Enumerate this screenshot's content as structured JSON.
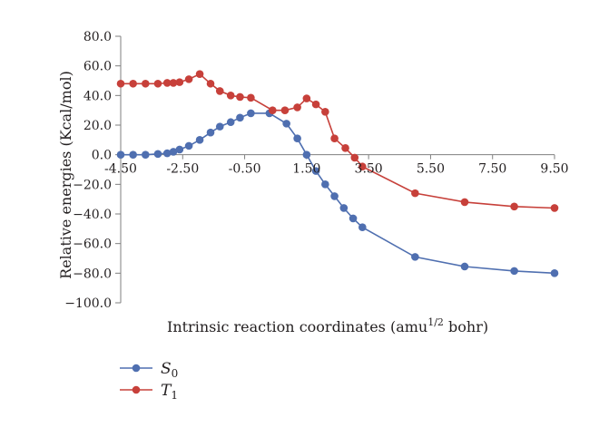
{
  "chart_data": {
    "type": "line",
    "ylabel": "Relative energies (Kcal/mol)",
    "xlabel": {
      "prefix": "Intrinsic reaction coordinates (amu",
      "sup": "1/2",
      "suffix": " bohr)"
    },
    "xlim": [
      -4.5,
      9.5
    ],
    "ylim": [
      -100,
      80
    ],
    "x_ticks": [
      {
        "value": -4.5,
        "label": "-4.50"
      },
      {
        "value": -2.5,
        "label": "-2.50"
      },
      {
        "value": -0.5,
        "label": "-0.50"
      },
      {
        "value": 1.5,
        "label": "1.50"
      },
      {
        "value": 3.5,
        "label": "3.50"
      },
      {
        "value": 5.5,
        "label": "5.50"
      },
      {
        "value": 7.5,
        "label": "7.50"
      },
      {
        "value": 9.5,
        "label": "9.50"
      }
    ],
    "y_ticks": [
      {
        "value": 80,
        "label": "80.0"
      },
      {
        "value": 60,
        "label": "60.0"
      },
      {
        "value": 40,
        "label": "40.0"
      },
      {
        "value": 20,
        "label": "20.0"
      },
      {
        "value": 0,
        "label": "0.0"
      },
      {
        "value": -20,
        "label": "−20.0"
      },
      {
        "value": -40,
        "label": "−40.0"
      },
      {
        "value": -60,
        "label": "−60.0"
      },
      {
        "value": -80,
        "label": "−80.0"
      },
      {
        "value": -100,
        "label": "−100.0"
      }
    ],
    "grid": false,
    "legend_position": "bottom-left",
    "series": [
      {
        "name_main": "S",
        "name_sub": "0",
        "color": "#4f6fb0",
        "x": [
          -4.5,
          -4.1,
          -3.7,
          -3.3,
          -3.0,
          -2.8,
          -2.6,
          -2.3,
          -1.95,
          -1.6,
          -1.3,
          -0.95,
          -0.65,
          -0.3,
          0.3,
          0.85,
          1.2,
          1.5,
          1.8,
          2.1,
          2.4,
          2.7,
          3.0,
          3.3,
          5.0,
          6.6,
          8.2,
          9.5
        ],
        "y": [
          0,
          0,
          0,
          0.5,
          1,
          2,
          3.5,
          6,
          10,
          15,
          19,
          22,
          25,
          28,
          28,
          21,
          11,
          0,
          -11,
          -20,
          -28,
          -36,
          -43,
          -49,
          -69,
          -75.5,
          -78.5,
          -80
        ]
      },
      {
        "name_main": "T",
        "name_sub": "1",
        "color": "#c7403a",
        "x": [
          -4.5,
          -4.1,
          -3.7,
          -3.3,
          -3.0,
          -2.8,
          -2.6,
          -2.3,
          -1.95,
          -1.6,
          -1.3,
          -0.95,
          -0.65,
          -0.3,
          0.4,
          0.8,
          1.2,
          1.5,
          1.8,
          2.1,
          2.4,
          2.75,
          3.05,
          3.3,
          5.0,
          6.6,
          8.2,
          9.5
        ],
        "y": [
          48,
          48,
          48,
          48,
          48.5,
          48.5,
          49,
          51,
          54.5,
          48,
          43,
          40,
          39,
          38.5,
          30,
          30,
          32,
          38,
          34,
          29,
          11,
          4.5,
          -2,
          -8,
          -26,
          -32,
          -35,
          -36
        ]
      }
    ]
  }
}
